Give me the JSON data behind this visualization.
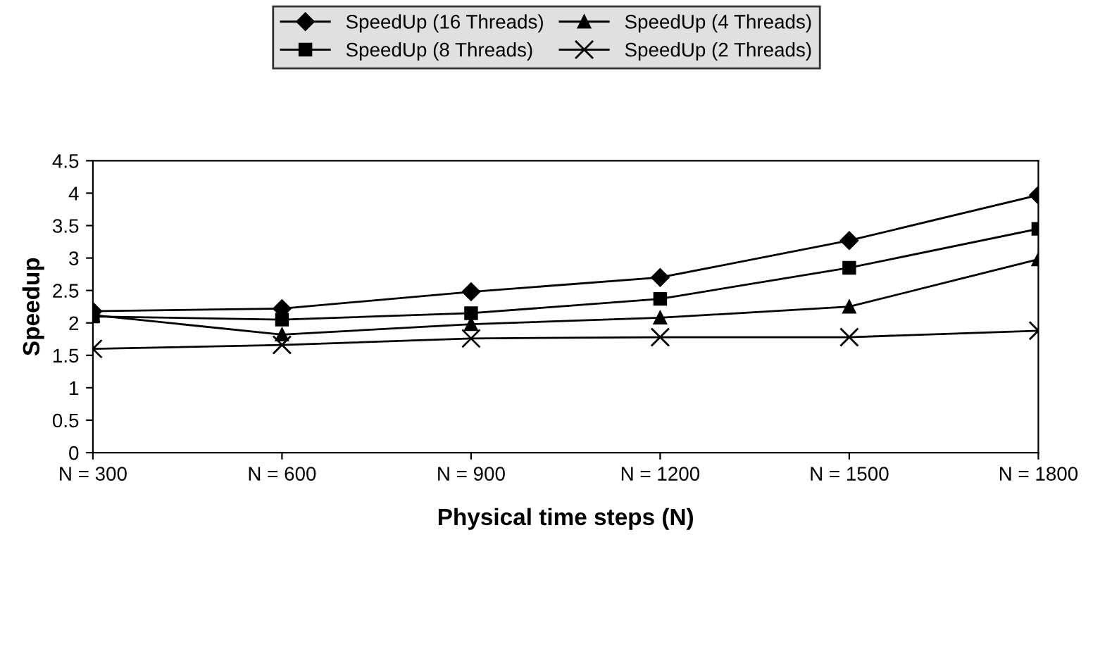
{
  "chart_data": {
    "type": "line",
    "xlabel": "Physical time steps (N)",
    "ylabel": "Speedup",
    "categories": [
      "N = 300",
      "N = 600",
      "N = 900",
      "N = 1200",
      "N = 1500",
      "N = 1800"
    ],
    "series": [
      {
        "name": "SpeedUp (16 Threads)",
        "color": "#000000",
        "marker": "diamond",
        "values": [
          2.18,
          2.22,
          2.48,
          2.7,
          3.27,
          3.97
        ]
      },
      {
        "name": "SpeedUp (8 Threads)",
        "color": "#000000",
        "marker": "square",
        "values": [
          2.1,
          2.05,
          2.15,
          2.37,
          2.85,
          3.45
        ]
      },
      {
        "name": "SpeedUp (4 Threads)",
        "color": "#000000",
        "marker": "triangle",
        "values": [
          2.12,
          1.82,
          1.98,
          2.08,
          2.25,
          2.98
        ]
      },
      {
        "name": "SpeedUp (2 Threads)",
        "color": "#000000",
        "marker": "cross",
        "values": [
          1.6,
          1.66,
          1.76,
          1.78,
          1.78,
          1.88
        ]
      }
    ],
    "ylim": [
      0,
      4.5
    ],
    "yticks": [
      0,
      0.5,
      1,
      1.5,
      2,
      2.5,
      3,
      3.5,
      4,
      4.5
    ],
    "grid": false,
    "legend": "top",
    "line_style": "solid"
  }
}
